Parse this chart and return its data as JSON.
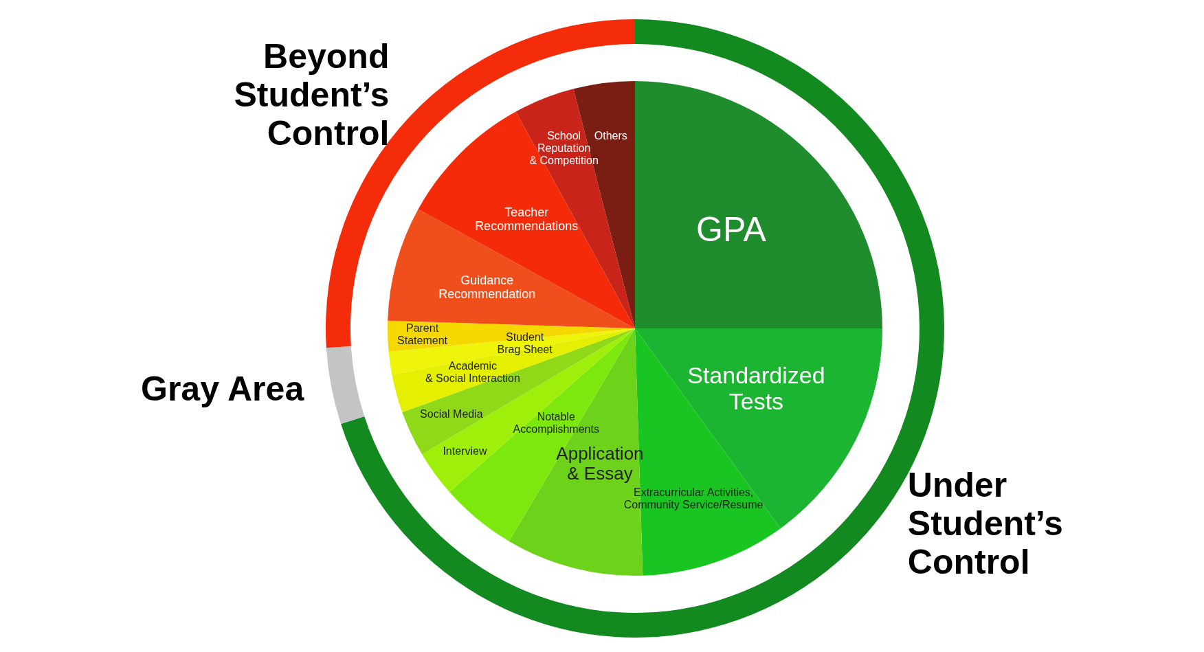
{
  "chart_data": [
    {
      "type": "donut",
      "categories": [
        "Under\nStudent’s\nControl",
        "Gray Area",
        "Beyond\nStudent’s\nControl"
      ],
      "values": [
        70,
        4,
        26
      ],
      "colors": [
        "#138a1f",
        "#c4c4c4",
        "#f52c0a"
      ]
    },
    {
      "type": "pie",
      "categories": [
        "GPA",
        "Standardized\nTests",
        "Extracurricular Activities,\nCommunity Service/Resume",
        "Application\n& Essay",
        "Notable\nAccomplishments",
        "Interview",
        "Social Media",
        "Academic\n& Social Interaction",
        "Student\nBrag Sheet",
        "Parent\nStatement",
        "Guidance\nRecommendation",
        "Teacher\nRecommendations",
        "School\nReputation\n& Competition",
        "Others"
      ],
      "values": [
        25,
        15,
        9.5,
        9,
        5,
        3,
        3,
        2.5,
        1.5,
        2,
        7.5,
        9,
        4,
        4
      ],
      "colors": [
        "#1f8c2e",
        "#1cb531",
        "#19c520",
        "#6dd21a",
        "#7de80e",
        "#9ef00a",
        "#8fd918",
        "#e4f000",
        "#eef40a",
        "#f5d800",
        "#f04e1a",
        "#f52a08",
        "#c8241a",
        "#7a1e14"
      ]
    }
  ]
}
